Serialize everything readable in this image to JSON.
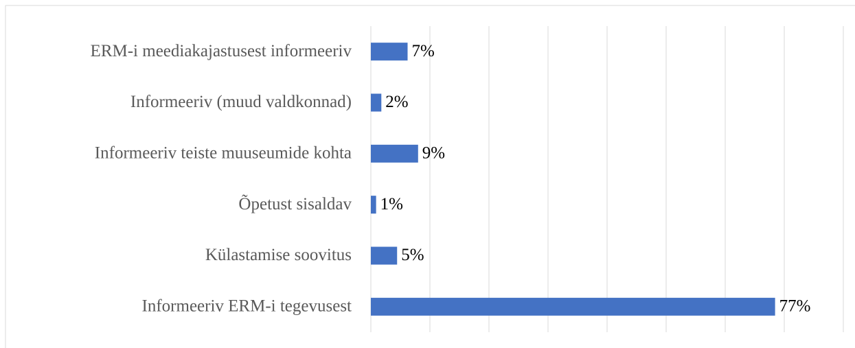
{
  "chart_data": {
    "type": "hbar",
    "categories": [
      "ERM-i meediakajastusest informeeriv",
      "Informeeriv (muud valdkonnad)",
      "Informeeriv teiste muuseumide kohta",
      "Õpetust sisaldav",
      "Külastamise soovitus",
      "Informeeriv ERM-i tegevusest"
    ],
    "values": [
      7,
      2,
      9,
      1,
      5,
      77
    ],
    "value_labels": [
      "7%",
      "2%",
      "9%",
      "1%",
      "5%",
      "77%"
    ],
    "color": "#4472c4",
    "xlim": [
      0,
      90
    ],
    "xticks": [
      0,
      11.25,
      22.5,
      33.75,
      45,
      56.25,
      67.5,
      78.75,
      90
    ],
    "grid": true
  }
}
